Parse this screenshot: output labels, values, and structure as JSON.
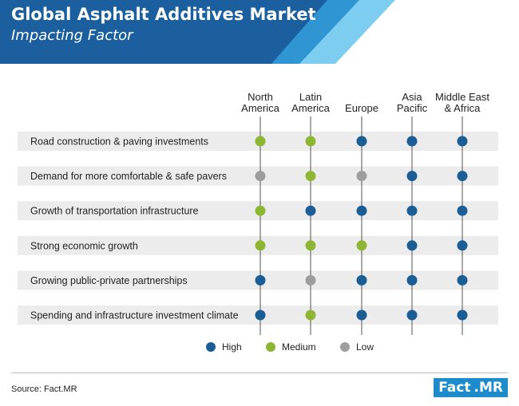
{
  "header": {
    "title": "Global Asphalt Additives Market",
    "subtitle": "Impacting Factor",
    "colors": {
      "dark": "#1b5f9e",
      "mid": "#2f95d3",
      "light": "#7ccdf0"
    }
  },
  "chart_data": {
    "type": "table",
    "columns": [
      [
        "North",
        "America"
      ],
      [
        "Latin",
        "America"
      ],
      [
        "Europe"
      ],
      [
        "Asia",
        "Pacific"
      ],
      [
        "Middle East",
        "& Africa"
      ]
    ],
    "rows": [
      {
        "label": "Road construction & paving investments",
        "values": [
          "Medium",
          "Medium",
          "High",
          "High",
          "High"
        ]
      },
      {
        "label": "Demand for more comfortable & safe pavers",
        "values": [
          "Low",
          "Medium",
          "Low",
          "High",
          "High"
        ]
      },
      {
        "label": "Growth of transportation infrastructure",
        "values": [
          "Medium",
          "High",
          "High",
          "High",
          "High"
        ]
      },
      {
        "label": "Strong economic growth",
        "values": [
          "Medium",
          "Medium",
          "Medium",
          "High",
          "High"
        ]
      },
      {
        "label": "Growing public-private partnerships",
        "values": [
          "High",
          "Low",
          "High",
          "High",
          "High"
        ]
      },
      {
        "label": "Spending and infrastructure investment climate",
        "values": [
          "High",
          "Medium",
          "High",
          "High",
          "High"
        ]
      }
    ],
    "legend": [
      {
        "label": "High",
        "color": "#1b5e96"
      },
      {
        "label": "Medium",
        "color": "#8db733"
      },
      {
        "label": "Low",
        "color": "#9e9e9e"
      }
    ],
    "row_band_color": "#ececec",
    "gridline_color": "#555555"
  },
  "footer": {
    "source": "Source: Fact.MR",
    "logo_part1": "Fact",
    "logo_part2": ".MR"
  }
}
